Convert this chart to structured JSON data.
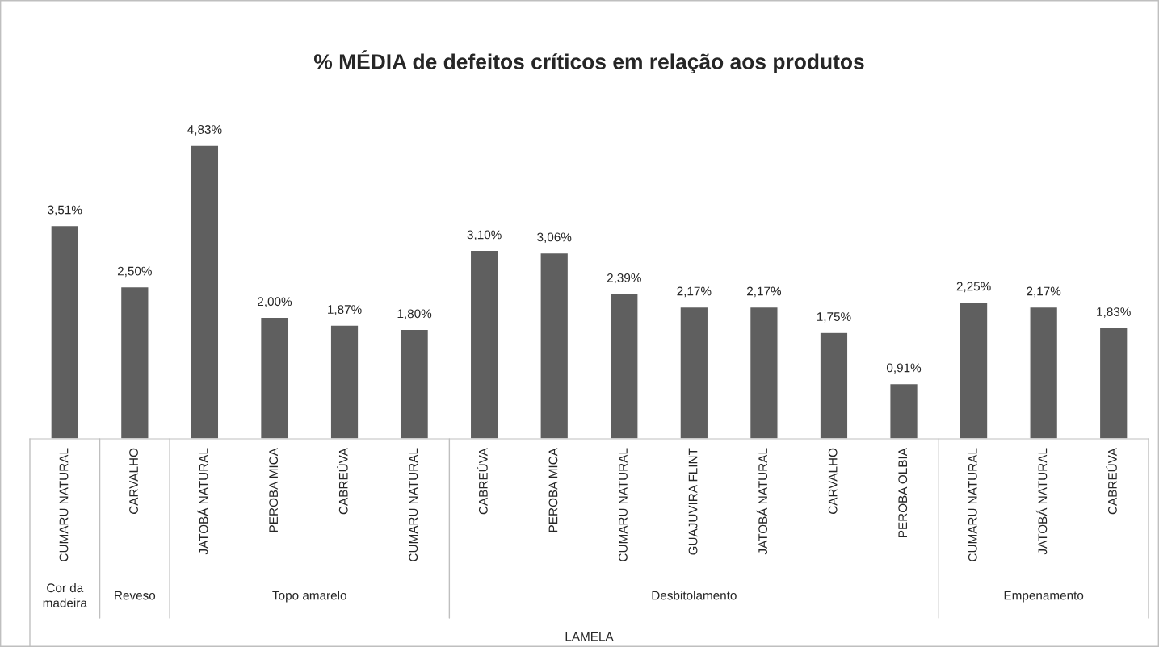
{
  "chart_data": {
    "type": "bar",
    "title": "% MÉDIA de defeitos críticos em relação aos produtos",
    "categories": [
      "CUMARU NATURAL",
      "CARVALHO",
      "JATOBÁ NATURAL",
      "PEROBA MICA",
      "CABREÚVA",
      "CUMARU NATURAL",
      "CABREÚVA",
      "PEROBA MICA",
      "CUMARU NATURAL",
      "GUAJUVIRA FLINT",
      "JATOBÁ NATURAL",
      "CARVALHO",
      "PEROBA OLBIA",
      "CUMARU NATURAL",
      "JATOBÁ NATURAL",
      "CABREÚVA"
    ],
    "values": [
      3.51,
      2.5,
      4.83,
      2.0,
      1.87,
      1.8,
      3.1,
      3.06,
      2.39,
      2.17,
      2.17,
      1.75,
      0.91,
      2.25,
      2.17,
      1.83
    ],
    "value_labels": [
      "3,51%",
      "2,50%",
      "4,83%",
      "2,00%",
      "1,87%",
      "1,80%",
      "3,10%",
      "3,06%",
      "2,39%",
      "2,17%",
      "2,17%",
      "1,75%",
      "0,91%",
      "2,25%",
      "2,17%",
      "1,83%"
    ],
    "color": "#5f5f5f",
    "annotations": [
      "Cor da\nmadeira",
      "Reveso",
      "Topo amarelo",
      "Desbitolamento",
      "Empenamento",
      "LAMELA"
    ]
  }
}
